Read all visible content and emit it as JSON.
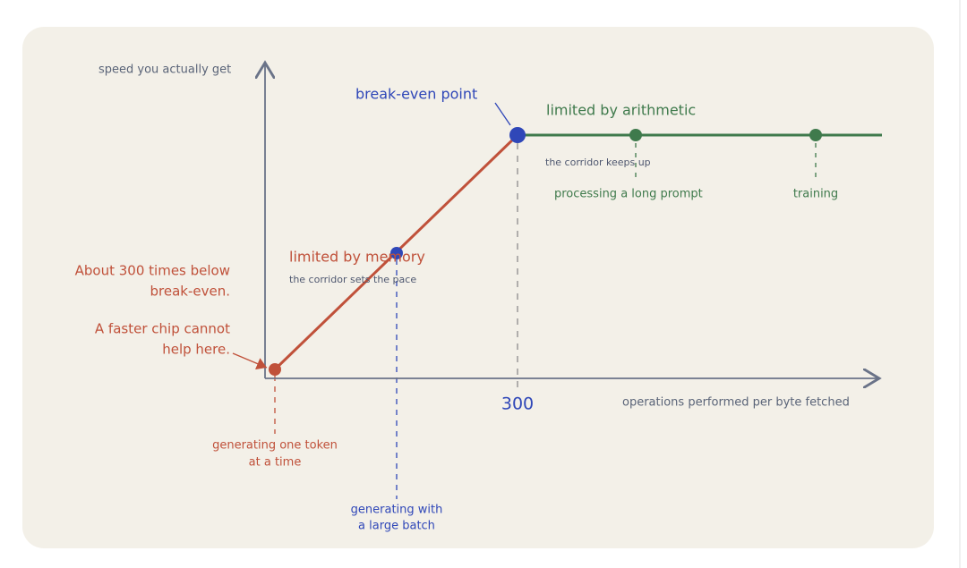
{
  "diagram": {
    "y_axis_label": "speed you actually get",
    "x_axis_label": "operations performed per byte fetched",
    "x_tick": "300",
    "break_even": "break-even point",
    "compute_region": {
      "title": "limited by arithmetic",
      "note": "the corridor keeps up"
    },
    "memory_region": {
      "title": "limited by memory",
      "note": "the corridor sets the pace"
    },
    "examples": {
      "long_prompt": "processing a long prompt",
      "training": "training",
      "one_token": [
        "generating one token",
        "at a time"
      ],
      "large_batch": [
        "generating with",
        "a large batch"
      ]
    },
    "callout": {
      "gap": [
        "About 300 times below",
        "break-even."
      ],
      "chip": [
        "A faster chip cannot",
        "help here."
      ]
    }
  }
}
